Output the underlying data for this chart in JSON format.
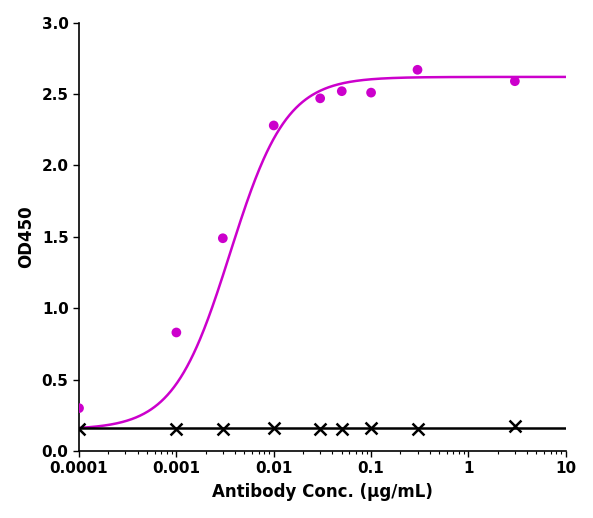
{
  "title": "",
  "xlabel": "Antibody Conc. (μg/mL)",
  "ylabel": "OD450",
  "xlim": [
    0.0001,
    10
  ],
  "ylim": [
    0,
    3.0
  ],
  "yticks": [
    0.0,
    0.5,
    1.0,
    1.5,
    2.0,
    2.5,
    3.0
  ],
  "magenta_x": [
    0.0001,
    0.001,
    0.003,
    0.01,
    0.03,
    0.05,
    0.1,
    0.3,
    3.0
  ],
  "magenta_y": [
    0.3,
    0.83,
    1.49,
    2.28,
    2.47,
    2.52,
    2.51,
    2.67,
    2.59
  ],
  "black_x": [
    0.0001,
    0.001,
    0.003,
    0.01,
    0.03,
    0.05,
    0.1,
    0.3,
    3.0
  ],
  "black_y": [
    0.155,
    0.155,
    0.155,
    0.158,
    0.155,
    0.155,
    0.158,
    0.155,
    0.172
  ],
  "magenta_color": "#CC00CC",
  "black_color": "#000000",
  "ec50_magenta": 0.003559,
  "line_width": 1.8,
  "marker_size": 7,
  "xlabel_fontsize": 12,
  "ylabel_fontsize": 12,
  "tick_labelsize": 11,
  "figsize": [
    5.93,
    5.18
  ],
  "dpi": 100
}
